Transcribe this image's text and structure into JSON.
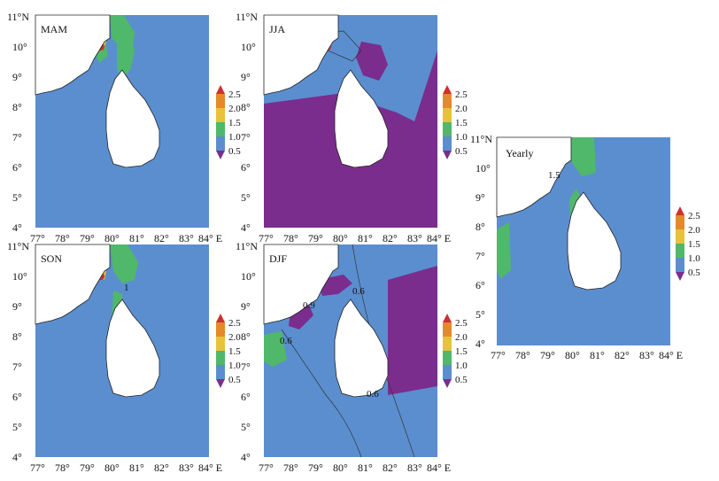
{
  "colors": {
    "ocean": "#5b8ecf",
    "purple": "#7b2d8e",
    "green": "#4fb86a",
    "yellow": "#e8c23a",
    "orange": "#e58a2a",
    "red": "#d12f2f",
    "land": "#ffffff"
  },
  "axes": {
    "lat_ticks": [
      "11°N",
      "10°",
      "9°",
      "8°",
      "7°",
      "6°",
      "5°",
      "4°"
    ],
    "lon_ticks": [
      "77°",
      "78°",
      "79°",
      "80°",
      "81°",
      "82°",
      "83°",
      "84° E"
    ]
  },
  "colorbar": {
    "ticks": [
      "2.5",
      "2.0",
      "1.5",
      "1.0",
      "0.5"
    ],
    "colors": [
      "#d12f2f",
      "#e58a2a",
      "#e8c23a",
      "#4fb86a",
      "#5b8ecf",
      "#7b2d8e"
    ]
  },
  "panels": [
    {
      "id": "MAM",
      "label": "MAM",
      "contours": []
    },
    {
      "id": "JJA",
      "label": "JJA",
      "contours": []
    },
    {
      "id": "SON",
      "label": "SON",
      "contours": [
        "1"
      ]
    },
    {
      "id": "DJF",
      "label": "DJF",
      "contours": [
        "0.6",
        "0.9",
        "0.6",
        "0.6"
      ]
    },
    {
      "id": "Yearly",
      "label": "Yearly",
      "contours": [
        "1.5"
      ]
    }
  ]
}
